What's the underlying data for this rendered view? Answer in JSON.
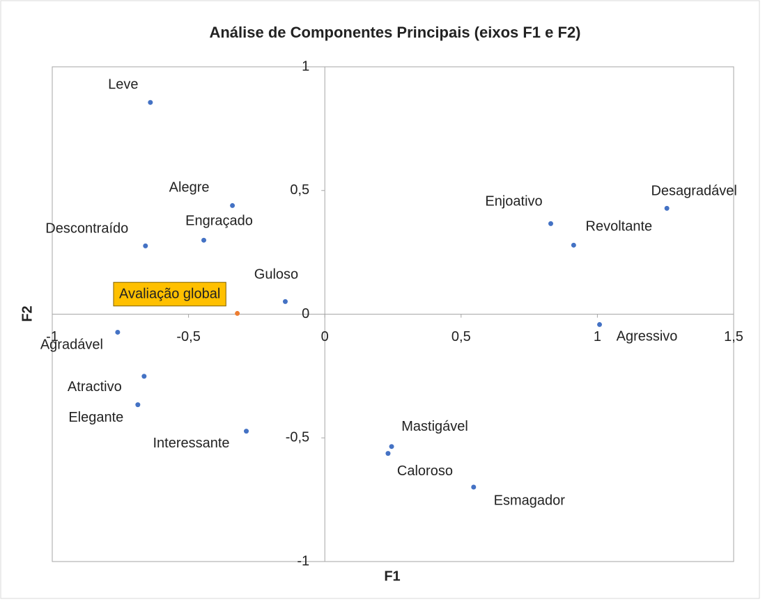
{
  "chart_data": {
    "type": "scatter",
    "title": "Análise de Componentes Principais (eixos F1 e F2)",
    "x_label": "F1",
    "y_label": "F2",
    "labels": [
      "Leve",
      "Alegre",
      "Engraçado",
      "Descontraído",
      "Guloso",
      "Avaliação global",
      "Agradável",
      "Atractivo",
      "Elegante",
      "Interessante",
      "Mastigável",
      "Caloroso",
      "Esmagador",
      "Enjoativo",
      "Revoltante",
      "Desagradável",
      "Agressivo"
    ],
    "x": [
      -0.64,
      -0.339,
      -0.444,
      -0.658,
      -0.145,
      -0.321,
      -0.76,
      -0.663,
      -0.686,
      -0.288,
      0.245,
      0.232,
      0.546,
      0.829,
      0.913,
      1.255,
      1.008
    ],
    "y": [
      0.856,
      0.439,
      0.299,
      0.276,
      0.051,
      0.003,
      -0.073,
      -0.251,
      -0.366,
      -0.473,
      -0.535,
      -0.563,
      -0.699,
      0.366,
      0.279,
      0.428,
      -0.042
    ],
    "point_colors": [
      "#4472c4",
      "#4472c4",
      "#4472c4",
      "#4472c4",
      "#4472c4",
      "#ed7d31",
      "#4472c4",
      "#4472c4",
      "#4472c4",
      "#4472c4",
      "#4472c4",
      "#4472c4",
      "#4472c4",
      "#4472c4",
      "#4472c4",
      "#4472c4",
      "#4472c4"
    ],
    "highlight_label_color": "#ffc000",
    "xlim": [
      -1,
      1.5
    ],
    "ylim": [
      -1,
      1
    ],
    "xticks": [
      -1,
      {
        "value": -0.5,
        "label": "-0,5"
      },
      0,
      {
        "value": 0.5,
        "label": "0,5"
      },
      1,
      {
        "value": 1.5,
        "label": "1,5"
      }
    ],
    "yticks": [
      -1,
      {
        "value": -0.5,
        "label": "-0,5"
      },
      0,
      {
        "value": 0.5,
        "label": "0,5"
      },
      1
    ]
  }
}
